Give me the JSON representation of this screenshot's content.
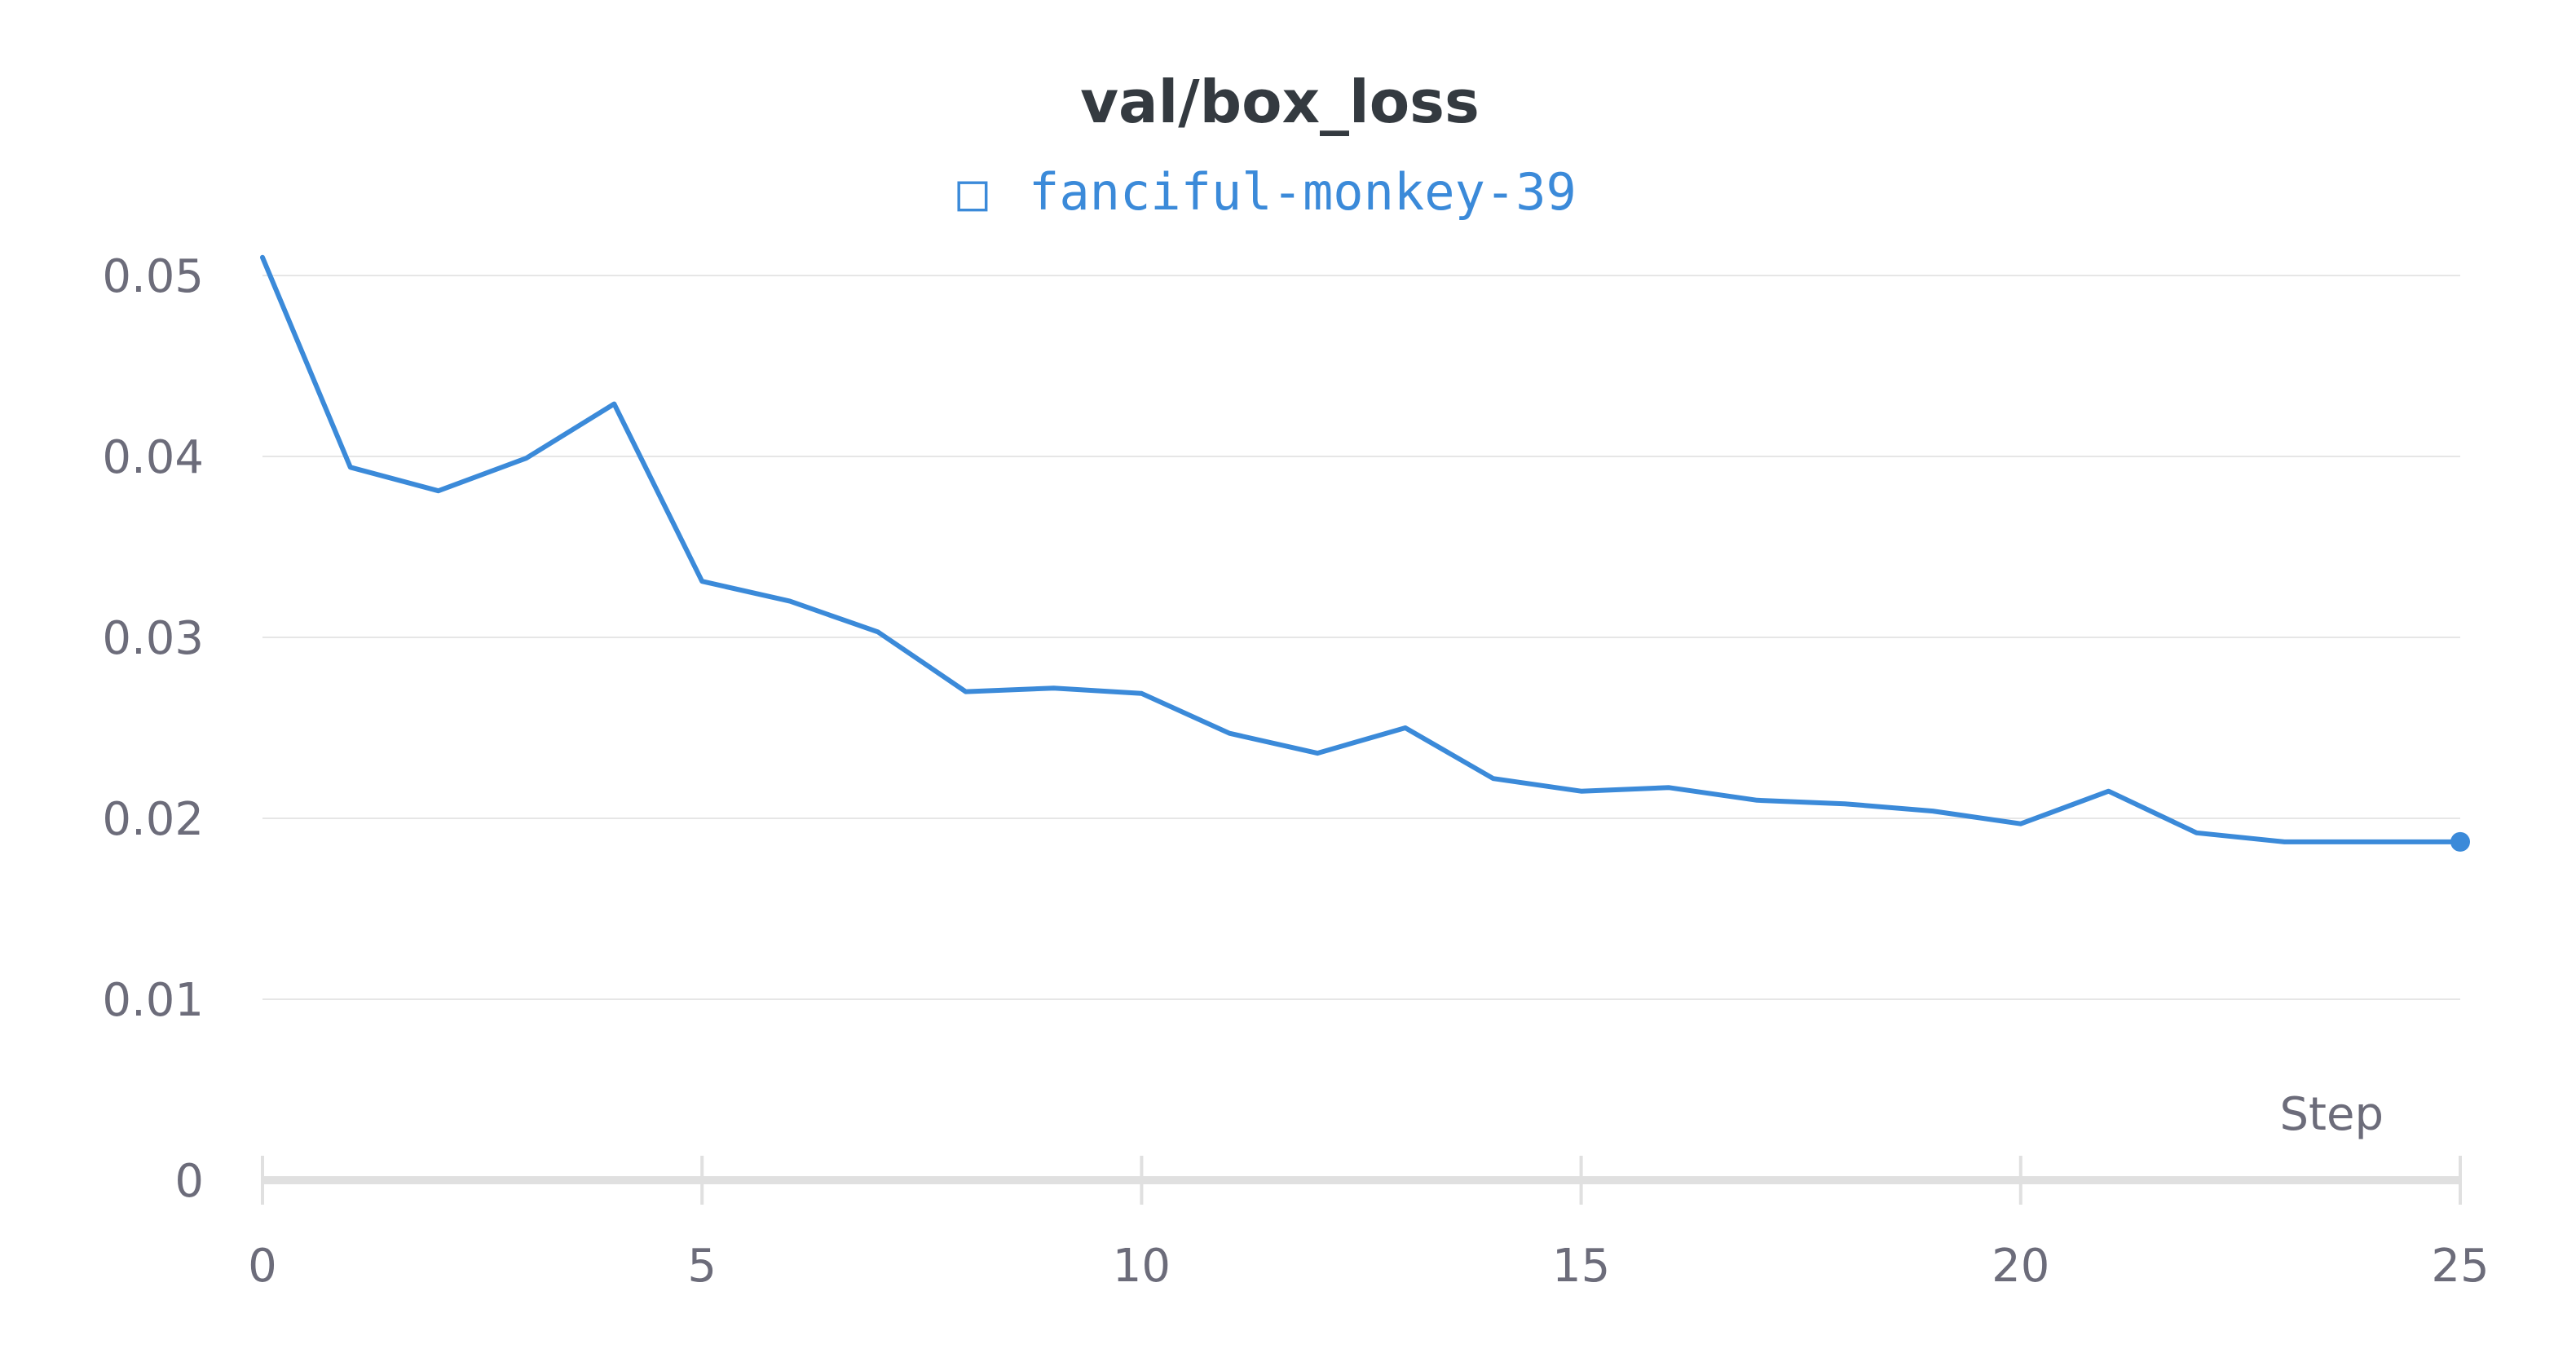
{
  "chart_data": {
    "type": "line",
    "title": "val/box_loss",
    "xlabel": "Step",
    "ylabel": "",
    "xlim": [
      0,
      25
    ],
    "ylim": [
      0,
      0.05
    ],
    "x_ticks": [
      0,
      5,
      10,
      15,
      20,
      25
    ],
    "y_ticks": [
      0,
      0.01,
      0.02,
      0.03,
      0.04,
      0.05
    ],
    "x_tick_labels": [
      "0",
      "5",
      "10",
      "15",
      "20",
      "25"
    ],
    "y_tick_labels": [
      "0",
      "0.01",
      "0.02",
      "0.03",
      "0.04",
      "0.05"
    ],
    "grid": true,
    "legend_position": "top-center",
    "series": [
      {
        "name": "fanciful-monkey-39",
        "color": "#3b8ad9",
        "x": [
          0,
          1,
          2,
          3,
          4,
          5,
          6,
          7,
          8,
          9,
          10,
          11,
          12,
          13,
          14,
          15,
          16,
          17,
          18,
          19,
          20,
          21,
          22,
          23,
          24,
          25
        ],
        "values": [
          0.051,
          0.0394,
          0.0381,
          0.0399,
          0.0429,
          0.0331,
          0.032,
          0.0303,
          0.027,
          0.0272,
          0.0269,
          0.0247,
          0.0236,
          0.025,
          0.0222,
          0.0215,
          0.0217,
          0.021,
          0.0208,
          0.0204,
          0.0197,
          0.0215,
          0.0192,
          0.0187,
          0.0187,
          0.0187
        ]
      }
    ]
  },
  "legend": {
    "marker_glyph": "□",
    "label": "fanciful-monkey-39"
  },
  "colors": {
    "accent": "#3b8ad9",
    "grid": "#e6e6e6",
    "axis": "#e0e0e0",
    "title": "#343a40",
    "tick_text": "#6c6c7a"
  }
}
